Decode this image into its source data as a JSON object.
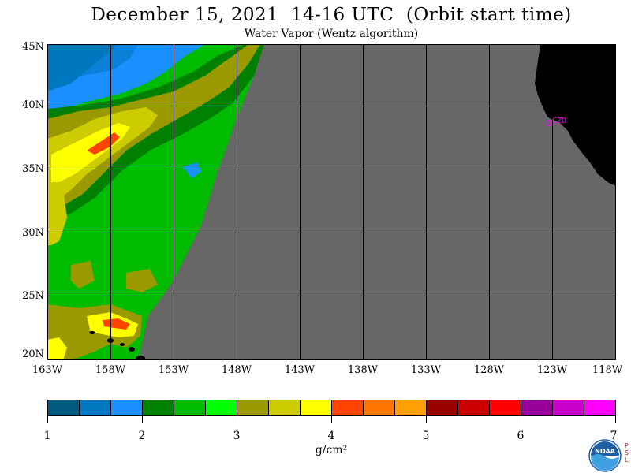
{
  "header": {
    "title": "December 15, 2021  14-16 UTC  (Orbit start time)",
    "subtitle": "Water Vapor (Wentz algorithm)"
  },
  "map": {
    "lat_labels": [
      "45N",
      "40N",
      "35N",
      "30N",
      "25N",
      "20N"
    ],
    "lon_labels": [
      "163W",
      "158W",
      "153W",
      "148W",
      "143W",
      "138W",
      "133W",
      "128W",
      "123W",
      "118W"
    ],
    "station_label": "CZD",
    "colors": {
      "no_data": "#676767",
      "land": "#000000",
      "grid": "#000000",
      "station": "#ff00ff"
    }
  },
  "colorbar": {
    "unit": "g/cm²",
    "tick_labels": [
      "1",
      "2",
      "3",
      "4",
      "5",
      "6",
      "7"
    ],
    "colors": [
      "#005a80",
      "#0077bf",
      "#1a8fff",
      "#008000",
      "#00bb00",
      "#00ff00",
      "#9a9a00",
      "#cccc00",
      "#ffff00",
      "#ff4400",
      "#ff7700",
      "#ffa000",
      "#990000",
      "#cc0000",
      "#ff0000",
      "#990099",
      "#cc00cc",
      "#ff00ff"
    ]
  },
  "logo": {
    "text": "NOAA",
    "lab_letters": "P S L"
  }
}
